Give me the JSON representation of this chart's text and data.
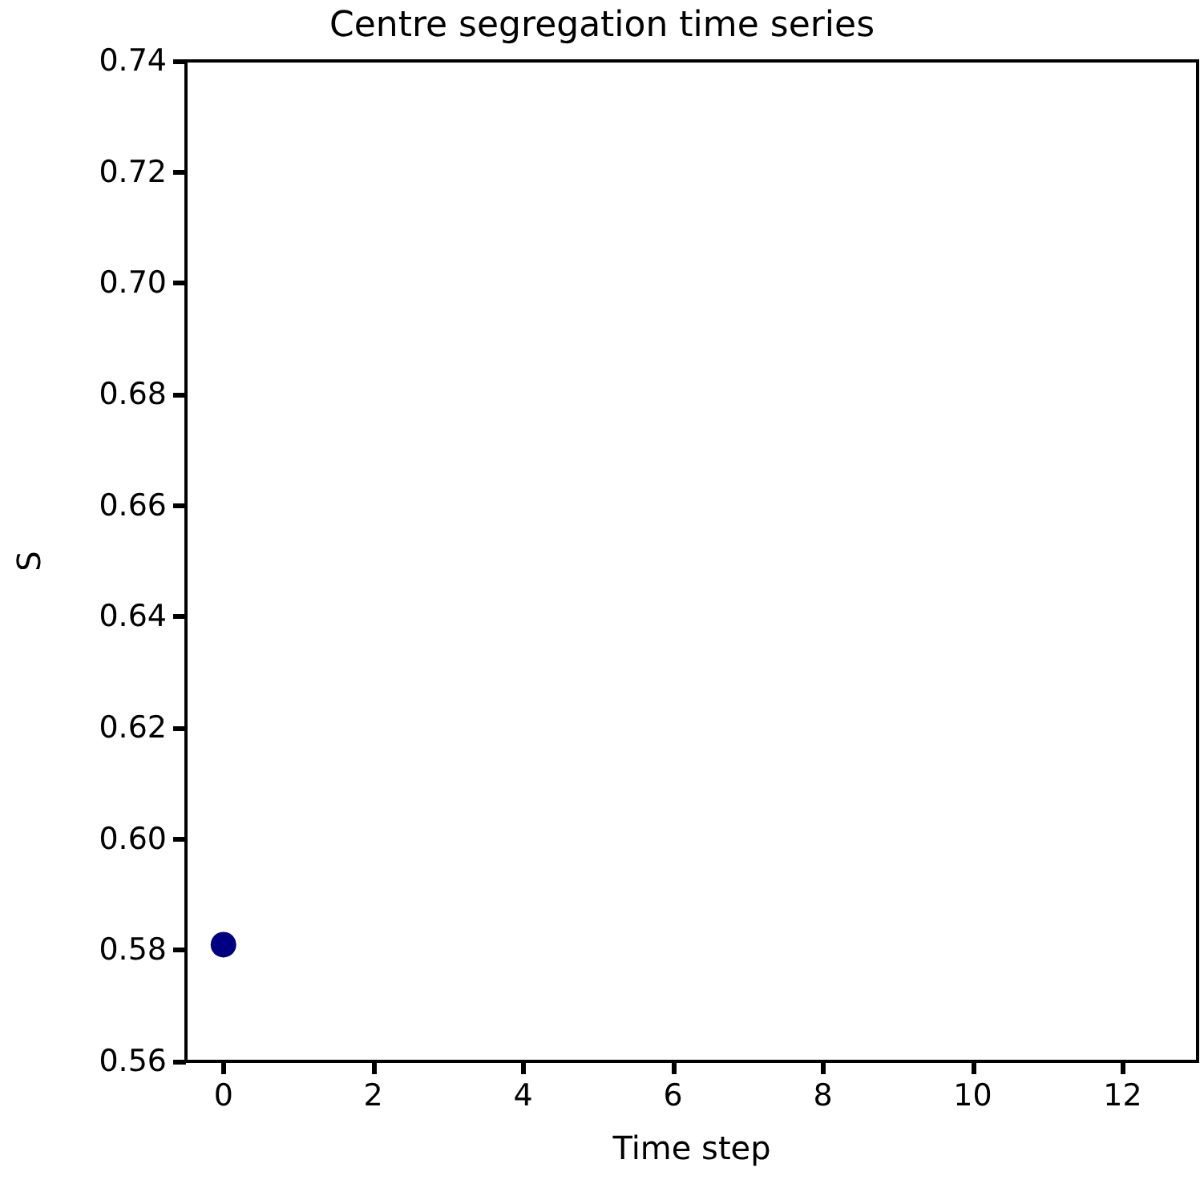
{
  "chart_data": {
    "type": "scatter",
    "title": "Centre segregation time series",
    "xlabel": "Time step",
    "ylabel": "S",
    "x": [
      0
    ],
    "series": [
      {
        "color": "#000080",
        "values": [
          0.581
        ]
      }
    ],
    "xlim": [
      -0.5,
      13
    ],
    "xticks": [
      0,
      2,
      4,
      6,
      8,
      10,
      12
    ],
    "ylim": [
      0.56,
      0.74
    ],
    "yticks": [
      {
        "value": 0.56,
        "label": "0.56"
      },
      {
        "value": 0.58,
        "label": "0.58"
      },
      {
        "value": 0.6,
        "label": "0.60"
      },
      {
        "value": 0.62,
        "label": "0.62"
      },
      {
        "value": 0.64,
        "label": "0.64"
      },
      {
        "value": 0.66,
        "label": "0.66"
      },
      {
        "value": 0.68,
        "label": "0.68"
      },
      {
        "value": 0.7,
        "label": "0.70"
      },
      {
        "value": 0.72,
        "label": "0.72"
      },
      {
        "value": 0.74,
        "label": "0.74"
      }
    ],
    "marker": "circle",
    "grid": false
  }
}
